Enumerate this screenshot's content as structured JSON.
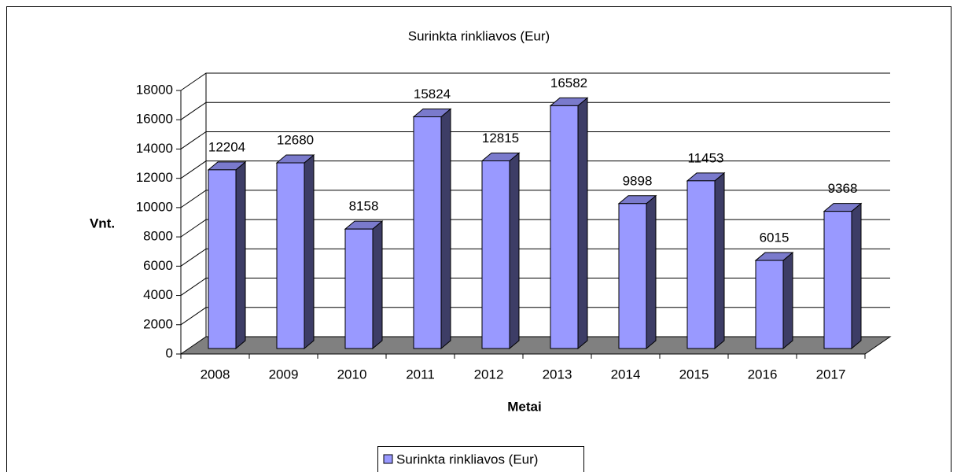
{
  "chart_data": {
    "type": "bar3d",
    "title": "Surinkta rinkliavos (Eur)",
    "x_label": "Metai",
    "y_label": "Vnt.",
    "categories": [
      "2008",
      "2009",
      "2010",
      "2011",
      "2012",
      "2013",
      "2014",
      "2015",
      "2016",
      "2017"
    ],
    "series": [
      {
        "name": "Surinkta rinkliavos (Eur)",
        "color": "#9999ff",
        "values": [
          12204,
          12680,
          8158,
          15824,
          12815,
          16582,
          9898,
          11453,
          6015,
          9368
        ]
      }
    ],
    "ylim": [
      0,
      18000
    ],
    "yticks": [
      0,
      2000,
      4000,
      6000,
      8000,
      10000,
      12000,
      14000,
      16000,
      18000
    ],
    "grid": true,
    "legend": "bottom"
  }
}
